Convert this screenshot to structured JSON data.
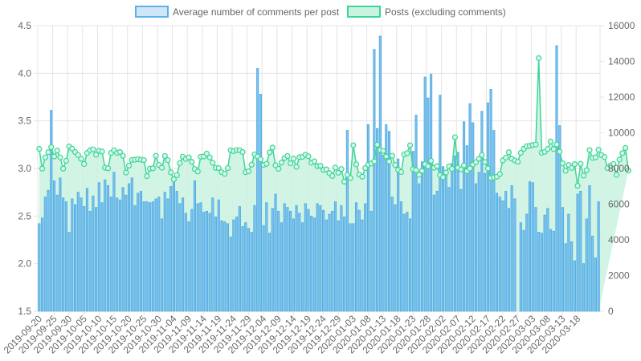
{
  "chart_data": {
    "type": "bar",
    "combo_with": "line",
    "legend": [
      {
        "label": "Average number of comments per post",
        "kind": "bar",
        "fill": "#cfe6f8",
        "stroke": "#5ab2e8"
      },
      {
        "label": "Posts (excluding comments)",
        "kind": "line",
        "fill": "#c9f2df",
        "stroke": "#3dd598"
      }
    ],
    "colors": {
      "bar_fill": "#7fc3ee",
      "bar_stroke": "#4aa8e3",
      "line_stroke": "#3dd598",
      "area_fill": "#c9f2df",
      "grid": "#e4e4e4",
      "axis_text": "#666666"
    },
    "y_left": {
      "min": 1.5,
      "max": 4.5,
      "ticks": [
        "1.5",
        "2.0",
        "2.5",
        "3.0",
        "3.5",
        "4.0",
        "4.5"
      ]
    },
    "y_right": {
      "min": 0,
      "max": 16000,
      "ticks": [
        "0",
        "2000",
        "4000",
        "6000",
        "8000",
        "10000",
        "12000",
        "14000",
        "16000"
      ]
    },
    "x_start_date": "2019-09-20",
    "x_tick_labels": [
      "2019-09-20",
      "2019-09-25",
      "2019-09-30",
      "2019-10-05",
      "2019-10-10",
      "2019-10-15",
      "2019-10-20",
      "2019-10-25",
      "2019-10-30",
      "2019-11-04",
      "2019-11-09",
      "2019-11-14",
      "2019-11-19",
      "2019-11-24",
      "2019-11-29",
      "2019-12-04",
      "2019-12-09",
      "2019-12-14",
      "2019-12-19",
      "2019-12-24",
      "2019-12-29",
      "2020-01-03",
      "2020-01-08",
      "2020-01-13",
      "2020-01-18",
      "2020-01-23",
      "2020-01-28",
      "2020-02-02",
      "2020-02-07",
      "2020-02-12",
      "2020-02-17",
      "2020-02-22",
      "2020-02-27",
      "2020-03-03",
      "2020-03-08",
      "2020-03-13",
      "2020-03-18"
    ],
    "grid": true,
    "series": [
      {
        "name": "Average number of comments per post",
        "axis": "left",
        "type": "bar",
        "values": [
          2.42,
          2.48,
          2.7,
          2.77,
          3.61,
          2.87,
          2.72,
          2.9,
          2.69,
          2.65,
          2.33,
          2.68,
          2.62,
          2.75,
          2.69,
          2.6,
          2.79,
          2.55,
          2.71,
          2.59,
          2.85,
          2.64,
          2.88,
          2.82,
          2.7,
          2.96,
          2.69,
          2.67,
          2.8,
          2.72,
          2.84,
          2.9,
          2.61,
          2.74,
          2.76,
          2.65,
          2.65,
          2.64,
          2.65,
          2.68,
          2.7,
          2.47,
          2.75,
          2.68,
          2.81,
          2.86,
          2.76,
          2.63,
          2.69,
          2.53,
          2.44,
          2.57,
          2.87,
          2.63,
          2.64,
          2.54,
          2.55,
          2.53,
          2.69,
          2.49,
          2.67,
          2.45,
          2.44,
          2.42,
          2.28,
          2.46,
          2.49,
          2.6,
          2.39,
          2.43,
          2.37,
          2.33,
          2.61,
          4.05,
          3.78,
          2.4,
          2.64,
          2.32,
          2.58,
          2.73,
          2.55,
          2.43,
          2.63,
          2.59,
          2.55,
          2.47,
          2.61,
          2.53,
          2.43,
          2.63,
          2.57,
          2.5,
          2.48,
          2.63,
          2.61,
          2.56,
          2.46,
          2.52,
          2.55,
          2.65,
          2.45,
          2.61,
          2.49,
          3.4,
          2.42,
          2.42,
          2.64,
          2.56,
          2.46,
          2.63,
          3.46,
          2.55,
          4.25,
          3.42,
          4.39,
          3.14,
          3.46,
          3.39,
          2.7,
          2.62,
          3.1,
          2.65,
          2.52,
          2.54,
          2.47,
          3.18,
          3.56,
          2.84,
          3.07,
          3.96,
          3.74,
          3.99,
          2.72,
          2.76,
          3.77,
          3.02,
          2.93,
          2.8,
          3.05,
          3.13,
          3.17,
          2.78,
          3.49,
          3.24,
          3.68,
          3.48,
          2.84,
          2.96,
          3.6,
          2.95,
          3.69,
          3.83,
          3.4,
          2.74,
          2.7,
          2.66,
          2.76,
          2.58,
          2.82,
          2.68,
          1.5,
          2.43,
          2.35,
          2.52,
          2.86,
          2.85,
          2.59,
          2.33,
          2.32,
          2.51,
          2.58,
          2.36,
          2.34,
          4.29,
          3.45,
          2.59,
          2.21,
          2.52,
          2.23,
          2.03,
          2.73,
          2.76,
          2.0,
          2.47,
          2.82,
          2.29,
          2.06,
          2.65
        ]
      },
      {
        "name": "Posts (excluding comments)",
        "axis": "right",
        "type": "line",
        "values": [
          9100,
          7990,
          8620,
          8910,
          9200,
          8670,
          9000,
          8620,
          7990,
          8430,
          9230,
          9110,
          8920,
          8750,
          8540,
          8250,
          8870,
          9020,
          9070,
          8770,
          8990,
          8950,
          8040,
          8010,
          8870,
          9020,
          8870,
          8920,
          8710,
          7770,
          8160,
          8480,
          8490,
          8520,
          8490,
          8470,
          7570,
          7990,
          8010,
          8710,
          8200,
          8040,
          8700,
          8470,
          7780,
          7390,
          7620,
          8300,
          8660,
          8530,
          8620,
          8370,
          7970,
          7830,
          8660,
          8670,
          8830,
          8620,
          8320,
          8030,
          8020,
          7790,
          7700,
          8020,
          9020,
          8970,
          9030,
          9020,
          8920,
          7790,
          7840,
          8210,
          8790,
          8670,
          8510,
          8200,
          8260,
          8900,
          9170,
          8180,
          7980,
          8330,
          8580,
          8700,
          8290,
          8550,
          8090,
          8630,
          8650,
          8770,
          8680,
          8320,
          8400,
          8130,
          8150,
          7920,
          7950,
          7740,
          7580,
          8050,
          7760,
          7970,
          7260,
          7640,
          7470,
          9300,
          8230,
          7660,
          7540,
          8020,
          8210,
          8280,
          8400,
          9330,
          9030,
          8980,
          8670,
          8390,
          8710,
          8200,
          7920,
          7800,
          8790,
          8860,
          9300,
          7960,
          7900,
          7640,
          7860,
          8240,
          8120,
          8430,
          8040,
          8130,
          7620,
          7510,
          7770,
          8120,
          7980,
          9750,
          8040,
          7950,
          8170,
          7850,
          8000,
          8220,
          8350,
          8540,
          8750,
          8360,
          8000,
          7470,
          7500,
          7540,
          7690,
          8450,
          8610,
          8910,
          8550,
          8450,
          8380,
          8880,
          9100,
          9250,
          9270,
          9310,
          9340,
          14180,
          8880,
          8930,
          9090,
          9510,
          9090,
          9340,
          8940,
          8290,
          7870,
          8200,
          8030,
          8240,
          7030,
          8260,
          7600,
          7900,
          9030,
          8590,
          8620,
          9050,
          8750,
          8640,
          8020,
          8160,
          8250,
          7640,
          8500,
          8860,
          9150,
          7880
        ]
      }
    ]
  }
}
